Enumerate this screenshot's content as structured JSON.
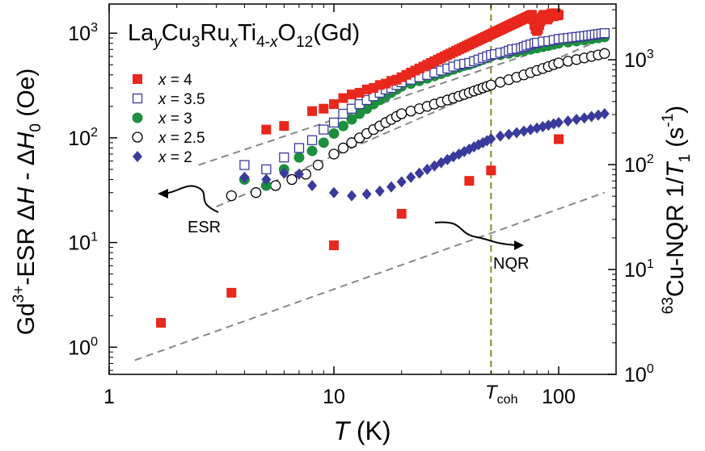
{
  "chart_data": {
    "type": "scatter",
    "title": "",
    "x_scale": "log",
    "y_scale": "log",
    "xlim": [
      1,
      180
    ],
    "ylim_left": [
      0.55,
      1900
    ],
    "ylim_right": [
      1,
      3400
    ],
    "x_ticks": [
      1,
      10,
      100
    ],
    "x_tick_labels": [
      "1",
      "10",
      "100"
    ],
    "left_y_ticks": [
      1,
      10,
      100,
      1000
    ],
    "left_y_tick_mantissa": [
      "10",
      "10",
      "10",
      "10"
    ],
    "left_y_tick_exponent": [
      "0",
      "1",
      "2",
      "3"
    ],
    "right_y_ticks": [
      1,
      10,
      100,
      1000
    ],
    "right_y_tick_mantissa": [
      "10",
      "10",
      "10",
      "10"
    ],
    "right_y_tick_exponent": [
      "0",
      "1",
      "2",
      "3"
    ],
    "xlabel": {
      "italic": "T",
      "rest": " (K)"
    },
    "ylabel_left": {
      "p1": "Gd",
      "p1_sup": "3+",
      "p2": "-ESR  Δ",
      "p3_it": "H",
      "p4": " - Δ",
      "p5_it": "H",
      "p5_sub": "0",
      "p6": " (Oe)"
    },
    "ylabel_right": {
      "p1_sup": "63",
      "p2": "Cu-NQR  1/",
      "p3_it": "T",
      "p3_sub": "1",
      "p4": " (s",
      "p4_sup": "-1",
      "p5": ")"
    },
    "compound": {
      "a": "La",
      "b": "y",
      "c": "Cu",
      "d": "3",
      "e": "Ru",
      "f": "x",
      "g": "Ti",
      "h": "4-",
      "i": "x",
      "j": "O",
      "k": "12",
      "l": "(Gd)"
    },
    "legend_placement": "top-left",
    "legend_var": "x",
    "legend_eq": " = ",
    "annotations": {
      "esr": "ESR",
      "nqr": "NQR",
      "tcoh_main": "T",
      "tcoh_sub": "coh"
    },
    "tcoh": 50,
    "colors": {
      "red": "#e8271d",
      "blue": "#3a3a9c",
      "green": "#1c8f3c",
      "black": "#000000",
      "dash": "#888888",
      "vline": "#8a8a2a"
    },
    "series": [
      {
        "name": "4",
        "axis": "left",
        "marker": "square-filled",
        "color": "#e8271d",
        "x": [
          5,
          6,
          8,
          9,
          10,
          11,
          12,
          13,
          14,
          15,
          16,
          17,
          18,
          19,
          20,
          21,
          22,
          23,
          24,
          25,
          26,
          27,
          28,
          29,
          30,
          31,
          32,
          33,
          34,
          35,
          36,
          37,
          38,
          39,
          40,
          41,
          42,
          43,
          44,
          45,
          46,
          47,
          48,
          49,
          50,
          51,
          52,
          53,
          54,
          55,
          56,
          57,
          58,
          59,
          60,
          61,
          62,
          63,
          64,
          65,
          66,
          67,
          68,
          69,
          70,
          71,
          72,
          73,
          74,
          75,
          76,
          77,
          78,
          79,
          80,
          81,
          82,
          83,
          84,
          85,
          86,
          87,
          88,
          89,
          90,
          91,
          92,
          93,
          94,
          95,
          96,
          97,
          98,
          99,
          100
        ],
        "y": [
          120,
          130,
          180,
          190,
          210,
          240,
          260,
          270,
          290,
          300,
          320,
          330,
          350,
          360,
          380,
          400,
          420,
          440,
          460,
          480,
          500,
          520,
          540,
          560,
          580,
          600,
          620,
          640,
          660,
          680,
          700,
          720,
          740,
          760,
          780,
          800,
          820,
          840,
          860,
          880,
          900,
          920,
          940,
          960,
          980,
          1000,
          1020,
          1040,
          1060,
          1080,
          1100,
          1120,
          1140,
          1160,
          1180,
          1200,
          1220,
          1240,
          1260,
          1280,
          1300,
          1320,
          1340,
          1360,
          1380,
          1400,
          1420,
          1440,
          1460,
          1480,
          1500,
          1350,
          1200,
          1100,
          1050,
          1100,
          1200,
          1300,
          1400,
          1450,
          1500,
          1450,
          1400,
          1350,
          1400,
          1450,
          1500,
          1550,
          1500,
          1450,
          1500,
          1550,
          1520,
          1480,
          1500
        ]
      },
      {
        "name": "3.5",
        "axis": "left",
        "marker": "square-open",
        "color": "#3a3a9c",
        "x": [
          4,
          5,
          6,
          7,
          8,
          9,
          10,
          11,
          12,
          13,
          14,
          15,
          16,
          17,
          18,
          19,
          20,
          22,
          24,
          26,
          28,
          30,
          32,
          34,
          36,
          38,
          40,
          42,
          44,
          46,
          48,
          50,
          52,
          55,
          58,
          60,
          62,
          65,
          68,
          70,
          72,
          75,
          78,
          80,
          85,
          90,
          95,
          100,
          105,
          110,
          115,
          120,
          125,
          130,
          135,
          140,
          145,
          150,
          155,
          160
        ],
        "y": [
          55,
          50,
          65,
          80,
          95,
          120,
          140,
          170,
          190,
          210,
          230,
          250,
          270,
          290,
          300,
          320,
          340,
          360,
          380,
          400,
          420,
          440,
          460,
          480,
          500,
          510,
          520,
          540,
          560,
          580,
          600,
          620,
          630,
          650,
          660,
          680,
          700,
          710,
          720,
          740,
          760,
          780,
          800,
          810,
          830,
          840,
          860,
          880,
          890,
          900,
          910,
          920,
          930,
          940,
          950,
          960,
          970,
          980,
          990,
          1000
        ]
      },
      {
        "name": "3",
        "axis": "left",
        "marker": "circle-filled",
        "color": "#1c8f3c",
        "x": [
          4,
          5,
          6,
          7,
          8,
          9,
          10,
          11,
          12,
          13,
          14,
          15,
          16,
          17,
          18,
          19,
          20,
          22,
          24,
          26,
          28,
          30,
          32,
          34,
          36,
          38,
          40,
          42,
          44,
          46,
          48,
          50,
          55,
          60,
          65,
          70,
          75,
          80,
          85,
          90,
          95,
          100,
          110,
          120,
          130,
          140,
          150,
          160
        ],
        "y": [
          40,
          35,
          50,
          65,
          75,
          90,
          110,
          130,
          150,
          170,
          190,
          210,
          230,
          250,
          270,
          290,
          310,
          330,
          350,
          370,
          390,
          410,
          430,
          450,
          470,
          490,
          500,
          520,
          540,
          560,
          580,
          600,
          620,
          640,
          660,
          680,
          700,
          720,
          740,
          760,
          780,
          800,
          820,
          840,
          860,
          880,
          900,
          920
        ]
      },
      {
        "name": "2.5",
        "axis": "left",
        "marker": "circle-open",
        "color": "#000000",
        "x": [
          3.5,
          4.5,
          5.5,
          6.5,
          7.5,
          8.5,
          10,
          11,
          12,
          13,
          14,
          15,
          16,
          17,
          18,
          19,
          20,
          22,
          24,
          26,
          28,
          30,
          32,
          34,
          36,
          38,
          40,
          42,
          44,
          46,
          48,
          50,
          55,
          60,
          65,
          70,
          75,
          80,
          85,
          90,
          95,
          100,
          110,
          120,
          130,
          140,
          150,
          160
        ],
        "y": [
          28,
          30,
          35,
          40,
          45,
          55,
          70,
          80,
          90,
          100,
          110,
          120,
          130,
          140,
          150,
          160,
          170,
          180,
          190,
          200,
          210,
          220,
          230,
          240,
          250,
          260,
          270,
          280,
          290,
          300,
          310,
          320,
          340,
          360,
          380,
          400,
          420,
          440,
          460,
          480,
          500,
          520,
          540,
          560,
          580,
          600,
          620,
          640
        ]
      },
      {
        "name": "2",
        "axis": "left",
        "marker": "diamond-filled",
        "color": "#3a3a9c",
        "x": [
          4,
          5,
          6,
          7,
          8,
          10,
          12,
          14,
          16,
          18,
          20,
          22,
          24,
          26,
          28,
          30,
          32,
          34,
          36,
          38,
          40,
          42,
          44,
          46,
          48,
          50,
          55,
          60,
          65,
          70,
          75,
          80,
          85,
          90,
          95,
          100,
          110,
          120,
          130,
          140,
          150,
          160
        ],
        "y": [
          42,
          40,
          46,
          45,
          35,
          30,
          28,
          29,
          31,
          34,
          38,
          42,
          46,
          50,
          54,
          58,
          62,
          66,
          70,
          74,
          78,
          82,
          86,
          90,
          94,
          98,
          104,
          108,
          112,
          116,
          120,
          124,
          128,
          132,
          136,
          140,
          145,
          150,
          155,
          160,
          165,
          170
        ]
      },
      {
        "name": "NQR x = 4",
        "axis": "right",
        "marker": "square-filled",
        "color": "#e8271d",
        "x": [
          1.7,
          3.5,
          10,
          20,
          40,
          50,
          100
        ],
        "y": [
          3.1,
          6.0,
          17,
          34,
          70,
          88,
          175
        ]
      }
    ],
    "fit_lines": [
      {
        "axis": "left",
        "x": [
          1.3,
          160
        ],
        "y": [
          0.75,
          30
        ]
      },
      {
        "axis": "left",
        "x": [
          2.5,
          160
        ],
        "y": [
          55,
          1100
        ]
      },
      {
        "axis": "left",
        "x": [
          3,
          160
        ],
        "y": [
          22,
          900
        ]
      }
    ]
  }
}
